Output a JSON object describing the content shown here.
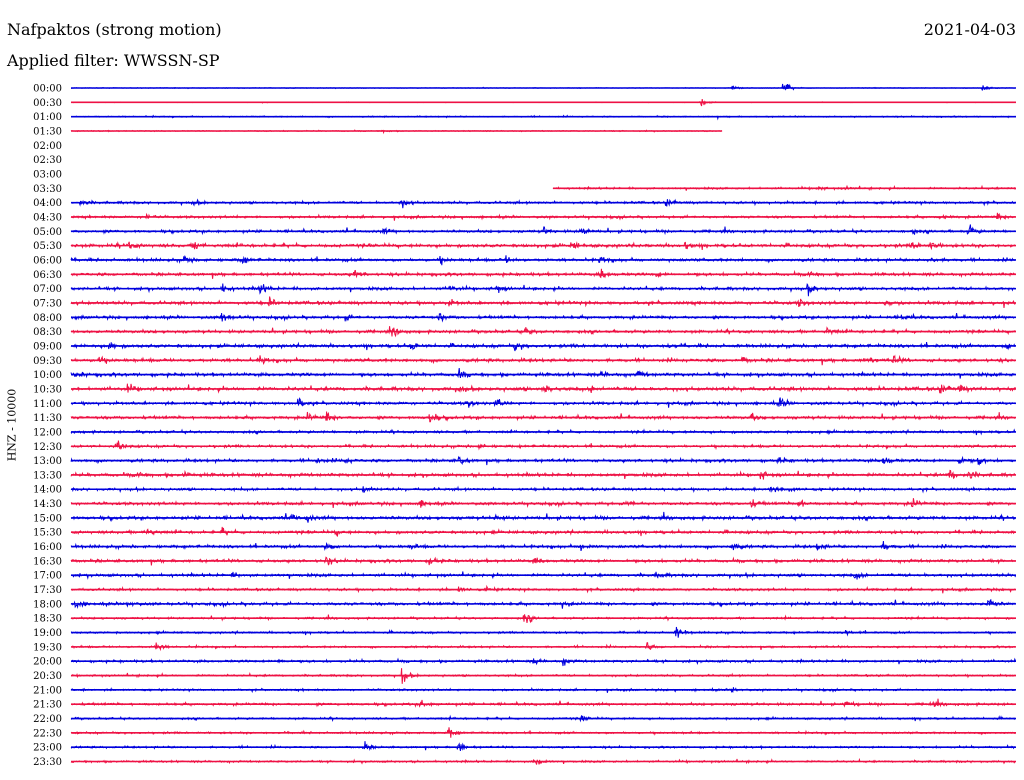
{
  "header": {
    "station": "Nafpaktos (strong motion)",
    "filter": "Applied filter: WWSSN-SP",
    "date": "2021-04-03"
  },
  "colors": {
    "blue": "#0000dd",
    "red": "#ee1144"
  },
  "chart_data": {
    "type": "line",
    "title": "Nafpaktos (strong motion)",
    "subtitle": "Applied filter: WWSSN-SP",
    "ylabel": "HNZ - 10000",
    "xlabel": "",
    "grid": false,
    "time_unit_fraction_of_half_hour": [
      0,
      1
    ],
    "rows": [
      {
        "label": "00:00",
        "color": "blue",
        "start": 0,
        "end": 1,
        "noise": 0.4,
        "events": [
          [
            0.7,
            5
          ],
          [
            0.754,
            12
          ],
          [
            0.965,
            7
          ]
        ]
      },
      {
        "label": "00:30",
        "color": "red",
        "start": 0,
        "end": 1,
        "noise": 0.3,
        "events": [
          [
            0.667,
            8
          ]
        ]
      },
      {
        "label": "01:00",
        "color": "blue",
        "start": 0,
        "end": 1,
        "noise": 0.8,
        "events": []
      },
      {
        "label": "01:30",
        "color": "red",
        "start": 0,
        "end": 0.689,
        "noise": 0.6,
        "events": [
          [
            0.33,
            2
          ]
        ]
      },
      {
        "label": "02:00",
        "color": "blue",
        "start": 0,
        "end": 0,
        "noise": 0,
        "events": []
      },
      {
        "label": "02:30",
        "color": "red",
        "start": 0,
        "end": 0,
        "noise": 0,
        "events": []
      },
      {
        "label": "03:00",
        "color": "blue",
        "start": 0,
        "end": 0,
        "noise": 0,
        "events": []
      },
      {
        "label": "03:30",
        "color": "red",
        "start": 0.51,
        "end": 1,
        "noise": 1.2,
        "events": [
          [
            0.79,
            3
          ],
          [
            0.82,
            2
          ]
        ]
      },
      {
        "label": "04:00",
        "color": "blue",
        "start": 0,
        "end": 1,
        "noise": 1.5,
        "events": [
          [
            0.01,
            5
          ],
          [
            0.13,
            4
          ],
          [
            0.35,
            8
          ],
          [
            0.63,
            6
          ]
        ]
      },
      {
        "label": "04:30",
        "color": "red",
        "start": 0,
        "end": 1,
        "noise": 1.5,
        "events": [
          [
            0.08,
            4
          ],
          [
            0.92,
            4
          ],
          [
            0.98,
            5
          ]
        ]
      },
      {
        "label": "05:00",
        "color": "blue",
        "start": 0,
        "end": 1,
        "noise": 1.6,
        "events": [
          [
            0.33,
            5
          ],
          [
            0.5,
            6
          ],
          [
            0.54,
            8
          ],
          [
            0.89,
            4
          ],
          [
            0.95,
            9
          ]
        ]
      },
      {
        "label": "05:30",
        "color": "red",
        "start": 0,
        "end": 1,
        "noise": 2,
        "events": [
          [
            0.06,
            6
          ],
          [
            0.13,
            7
          ],
          [
            0.53,
            6
          ],
          [
            0.65,
            5
          ],
          [
            0.89,
            5
          ],
          [
            0.91,
            6
          ]
        ]
      },
      {
        "label": "06:00",
        "color": "blue",
        "start": 0,
        "end": 1,
        "noise": 1.8,
        "events": [
          [
            0.12,
            6
          ],
          [
            0.18,
            7
          ],
          [
            0.39,
            5
          ],
          [
            0.46,
            6
          ],
          [
            0.56,
            5
          ],
          [
            0.91,
            5
          ]
        ]
      },
      {
        "label": "06:30",
        "color": "red",
        "start": 0,
        "end": 1,
        "noise": 1.8,
        "events": [
          [
            0.3,
            8
          ],
          [
            0.56,
            9
          ],
          [
            0.62,
            4
          ],
          [
            0.78,
            5
          ]
        ]
      },
      {
        "label": "07:00",
        "color": "blue",
        "start": 0,
        "end": 1,
        "noise": 1.8,
        "events": [
          [
            0.16,
            7
          ],
          [
            0.2,
            9
          ],
          [
            0.4,
            6
          ],
          [
            0.45,
            7
          ],
          [
            0.78,
            8
          ]
        ]
      },
      {
        "label": "07:30",
        "color": "red",
        "start": 0,
        "end": 1,
        "noise": 2,
        "events": [
          [
            0.21,
            6
          ],
          [
            0.4,
            5
          ],
          [
            0.77,
            7
          ],
          [
            0.86,
            5
          ]
        ]
      },
      {
        "label": "08:00",
        "color": "blue",
        "start": 0,
        "end": 1,
        "noise": 1.8,
        "events": [
          [
            0.16,
            9
          ],
          [
            0.29,
            5
          ],
          [
            0.39,
            6
          ],
          [
            0.88,
            5
          ]
        ]
      },
      {
        "label": "08:30",
        "color": "red",
        "start": 0,
        "end": 1,
        "noise": 1.8,
        "events": [
          [
            0.34,
            6
          ],
          [
            0.48,
            6
          ],
          [
            0.8,
            6
          ]
        ]
      },
      {
        "label": "09:00",
        "color": "blue",
        "start": 0,
        "end": 1,
        "noise": 2,
        "events": [
          [
            0.04,
            7
          ],
          [
            0.36,
            6
          ],
          [
            0.47,
            9
          ],
          [
            0.63,
            6
          ],
          [
            0.99,
            7
          ]
        ]
      },
      {
        "label": "09:30",
        "color": "red",
        "start": 0,
        "end": 1,
        "noise": 2,
        "events": [
          [
            0.03,
            5
          ],
          [
            0.2,
            6
          ],
          [
            0.71,
            5
          ],
          [
            0.84,
            7
          ],
          [
            0.87,
            8
          ]
        ]
      },
      {
        "label": "10:00",
        "color": "blue",
        "start": 0,
        "end": 1,
        "noise": 2,
        "events": [
          [
            0.005,
            6
          ],
          [
            0.41,
            7
          ],
          [
            0.56,
            5
          ],
          [
            0.6,
            5
          ]
        ]
      },
      {
        "label": "10:30",
        "color": "red",
        "start": 0,
        "end": 1,
        "noise": 2.2,
        "events": [
          [
            0.06,
            7
          ],
          [
            0.41,
            6
          ],
          [
            0.5,
            8
          ],
          [
            0.55,
            5
          ],
          [
            0.92,
            7
          ],
          [
            0.94,
            6
          ]
        ]
      },
      {
        "label": "11:00",
        "color": "blue",
        "start": 0,
        "end": 1,
        "noise": 1.8,
        "events": [
          [
            0.24,
            9
          ],
          [
            0.42,
            6
          ],
          [
            0.45,
            8
          ],
          [
            0.75,
            9
          ]
        ]
      },
      {
        "label": "11:30",
        "color": "red",
        "start": 0,
        "end": 1,
        "noise": 1.8,
        "events": [
          [
            0.25,
            7
          ],
          [
            0.27,
            8
          ],
          [
            0.38,
            10
          ],
          [
            0.72,
            5
          ]
        ]
      },
      {
        "label": "12:00",
        "color": "blue",
        "start": 0,
        "end": 1,
        "noise": 1.5,
        "events": []
      },
      {
        "label": "12:30",
        "color": "red",
        "start": 0,
        "end": 1,
        "noise": 1.6,
        "events": [
          [
            0.05,
            7
          ],
          [
            0.43,
            4
          ]
        ]
      },
      {
        "label": "13:00",
        "color": "blue",
        "start": 0,
        "end": 1,
        "noise": 1.8,
        "events": [
          [
            0.26,
            5
          ],
          [
            0.29,
            4
          ],
          [
            0.41,
            8
          ],
          [
            0.75,
            5
          ],
          [
            0.86,
            8
          ],
          [
            0.94,
            7
          ],
          [
            0.96,
            6
          ]
        ]
      },
      {
        "label": "13:30",
        "color": "red",
        "start": 0,
        "end": 1,
        "noise": 2,
        "events": [
          [
            0.07,
            5
          ],
          [
            0.12,
            4
          ],
          [
            0.73,
            7
          ],
          [
            0.93,
            9
          ],
          [
            0.95,
            6
          ]
        ]
      },
      {
        "label": "14:00",
        "color": "blue",
        "start": 0,
        "end": 1,
        "noise": 1.6,
        "events": [
          [
            0.31,
            5
          ],
          [
            0.74,
            6
          ],
          [
            0.76,
            5
          ]
        ]
      },
      {
        "label": "14:30",
        "color": "red",
        "start": 0,
        "end": 1,
        "noise": 1.8,
        "events": [
          [
            0.37,
            6
          ],
          [
            0.59,
            5
          ],
          [
            0.72,
            7
          ],
          [
            0.77,
            7
          ],
          [
            0.89,
            8
          ]
        ]
      },
      {
        "label": "15:00",
        "color": "blue",
        "start": 0,
        "end": 1,
        "noise": 2,
        "events": [
          [
            0.23,
            7
          ],
          [
            0.25,
            6
          ],
          [
            0.45,
            5
          ]
        ]
      },
      {
        "label": "15:30",
        "color": "red",
        "start": 0,
        "end": 1,
        "noise": 1.8,
        "events": [
          [
            0.08,
            8
          ],
          [
            0.16,
            5
          ],
          [
            0.28,
            4
          ]
        ]
      },
      {
        "label": "16:00",
        "color": "blue",
        "start": 0,
        "end": 1,
        "noise": 1.8,
        "events": [
          [
            0.27,
            7
          ],
          [
            0.36,
            4
          ],
          [
            0.54,
            7
          ],
          [
            0.7,
            8
          ],
          [
            0.79,
            6
          ],
          [
            0.86,
            7
          ]
        ]
      },
      {
        "label": "16:30",
        "color": "red",
        "start": 0,
        "end": 1,
        "noise": 1.8,
        "events": [
          [
            0.27,
            7
          ],
          [
            0.38,
            6
          ],
          [
            0.49,
            5
          ]
        ]
      },
      {
        "label": "17:00",
        "color": "blue",
        "start": 0,
        "end": 1,
        "noise": 1.8,
        "events": [
          [
            0.17,
            4
          ],
          [
            0.62,
            5
          ],
          [
            0.83,
            6
          ]
        ]
      },
      {
        "label": "17:30",
        "color": "red",
        "start": 0,
        "end": 1,
        "noise": 1.5,
        "events": [
          [
            0.41,
            5
          ],
          [
            0.44,
            3
          ]
        ]
      },
      {
        "label": "18:00",
        "color": "blue",
        "start": 0,
        "end": 1,
        "noise": 1.8,
        "events": [
          [
            0.005,
            7
          ],
          [
            0.06,
            6
          ],
          [
            0.52,
            5
          ],
          [
            0.97,
            10
          ]
        ]
      },
      {
        "label": "18:30",
        "color": "red",
        "start": 0,
        "end": 1,
        "noise": 1.2,
        "events": [
          [
            0.48,
            9
          ]
        ]
      },
      {
        "label": "19:00",
        "color": "blue",
        "start": 0,
        "end": 1,
        "noise": 1.2,
        "events": [
          [
            0.64,
            10
          ],
          [
            0.82,
            5
          ]
        ]
      },
      {
        "label": "19:30",
        "color": "red",
        "start": 0,
        "end": 1,
        "noise": 1.2,
        "events": [
          [
            0.09,
            7
          ],
          [
            0.61,
            6
          ]
        ]
      },
      {
        "label": "20:00",
        "color": "blue",
        "start": 0,
        "end": 1,
        "noise": 1.5,
        "events": [
          [
            0.22,
            3
          ],
          [
            0.49,
            5
          ],
          [
            0.52,
            6
          ]
        ]
      },
      {
        "label": "20:30",
        "color": "red",
        "start": 0,
        "end": 1,
        "noise": 1.2,
        "events": [
          [
            0.35,
            13
          ]
        ]
      },
      {
        "label": "21:00",
        "color": "blue",
        "start": 0,
        "end": 1,
        "noise": 1.2,
        "events": [
          [
            0.7,
            5
          ]
        ]
      },
      {
        "label": "21:30",
        "color": "red",
        "start": 0,
        "end": 1,
        "noise": 1.5,
        "events": [
          [
            0.37,
            7
          ],
          [
            0.82,
            5
          ],
          [
            0.91,
            5
          ]
        ]
      },
      {
        "label": "22:00",
        "color": "blue",
        "start": 0,
        "end": 1,
        "noise": 1.2,
        "events": [
          [
            0.54,
            5
          ]
        ]
      },
      {
        "label": "22:30",
        "color": "red",
        "start": 0,
        "end": 1,
        "noise": 1.2,
        "events": [
          [
            0.4,
            10
          ]
        ]
      },
      {
        "label": "23:00",
        "color": "blue",
        "start": 0,
        "end": 1,
        "noise": 1.2,
        "events": [
          [
            0.31,
            7
          ],
          [
            0.41,
            9
          ]
        ]
      },
      {
        "label": "23:30",
        "color": "red",
        "start": 0,
        "end": 1,
        "noise": 1.2,
        "events": [
          [
            0.49,
            10
          ]
        ]
      }
    ]
  }
}
